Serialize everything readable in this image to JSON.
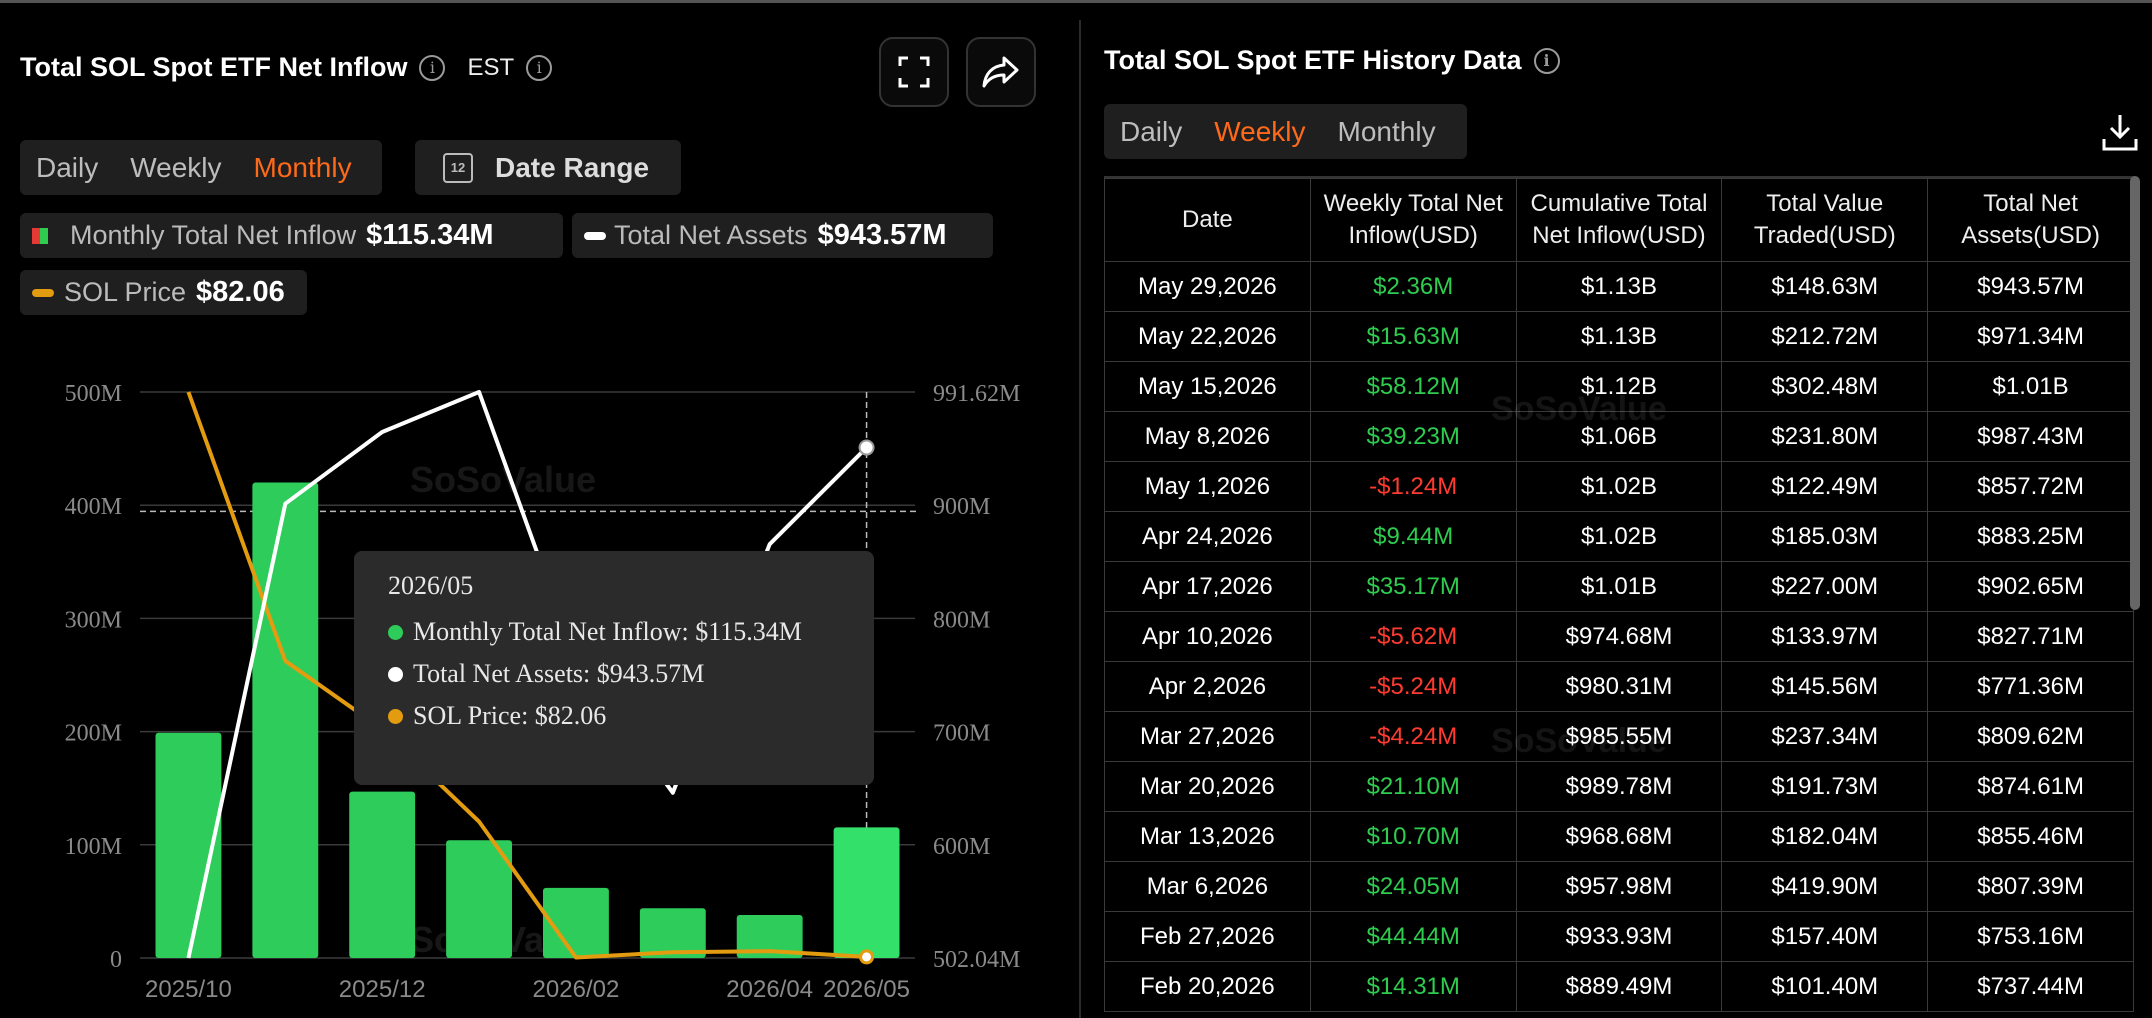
{
  "left": {
    "title": "Total SOL Spot ETF Net Inflow",
    "timezone": "EST",
    "period_tabs": [
      "Daily",
      "Weekly",
      "Monthly"
    ],
    "active_period": "Monthly",
    "date_range_label": "Date Range",
    "date_range_icon_text": "12",
    "legend": {
      "inflow_label": "Monthly Total Net Inflow",
      "inflow_value": "$115.34M",
      "assets_label": "Total Net Assets",
      "assets_value": "$943.57M",
      "price_label": "SOL Price",
      "price_value": "$82.06"
    },
    "tooltip": {
      "date": "2026/05",
      "inflow": "Monthly Total Net Inflow: $115.34M",
      "assets": "Total Net Assets: $943.57M",
      "price": "SOL Price: $82.06"
    },
    "watermark": "SoSoValue"
  },
  "chart_data": {
    "type": "bar",
    "categories": [
      "2025/10",
      "2025/11",
      "2025/12",
      "2026/01",
      "2026/02",
      "2026/03",
      "2026/04",
      "2026/05"
    ],
    "x_tick_labels": [
      "2025/10",
      "2025/12",
      "2026/02",
      "2026/04",
      "2026/05"
    ],
    "left_axis_ticks": [
      "500M",
      "400M",
      "300M",
      "200M",
      "100M",
      "0"
    ],
    "right_axis_ticks": [
      "991.62M",
      "900M",
      "800M",
      "700M",
      "600M",
      "502.04M"
    ],
    "ylim_left": [
      0,
      500
    ],
    "ylim_right": [
      502.04,
      991.62
    ],
    "series": [
      {
        "name": "Monthly Total Net Inflow",
        "type": "bar",
        "axis": "left",
        "color": "#2ecc5a",
        "values": [
          199,
          420,
          147,
          104,
          62,
          44,
          38,
          115.34
        ]
      },
      {
        "name": "Total Net Assets",
        "type": "line",
        "axis": "right",
        "color": "#ffffff",
        "values": [
          502.04,
          895,
          957,
          991.62,
          760,
          645,
          860,
          943.57
        ]
      },
      {
        "name": "SOL Price",
        "type": "line",
        "axis": "right",
        "color": "#e39b10",
        "values": [
          991.62,
          759,
          700,
          620,
          502.5,
          507,
          508,
          503
        ]
      }
    ],
    "grid": true,
    "highlight_category": "2026/05"
  },
  "right": {
    "title": "Total SOL Spot ETF History Data",
    "period_tabs": [
      "Daily",
      "Weekly",
      "Monthly"
    ],
    "active_period": "Weekly",
    "columns": [
      "Date",
      "Weekly Total Net Inflow(USD)",
      "Cumulative Total Net Inflow(USD)",
      "Total Value Traded(USD)",
      "Total Net Assets(USD)"
    ],
    "rows": [
      [
        "May 29,2026",
        "$2.36M",
        "$1.13B",
        "$148.63M",
        "$943.57M"
      ],
      [
        "May 22,2026",
        "$15.63M",
        "$1.13B",
        "$212.72M",
        "$971.34M"
      ],
      [
        "May 15,2026",
        "$58.12M",
        "$1.12B",
        "$302.48M",
        "$1.01B"
      ],
      [
        "May 8,2026",
        "$39.23M",
        "$1.06B",
        "$231.80M",
        "$987.43M"
      ],
      [
        "May 1,2026",
        "-$1.24M",
        "$1.02B",
        "$122.49M",
        "$857.72M"
      ],
      [
        "Apr 24,2026",
        "$9.44M",
        "$1.02B",
        "$185.03M",
        "$883.25M"
      ],
      [
        "Apr 17,2026",
        "$35.17M",
        "$1.01B",
        "$227.00M",
        "$902.65M"
      ],
      [
        "Apr 10,2026",
        "-$5.62M",
        "$974.68M",
        "$133.97M",
        "$827.71M"
      ],
      [
        "Apr 2,2026",
        "-$5.24M",
        "$980.31M",
        "$145.56M",
        "$771.36M"
      ],
      [
        "Mar 27,2026",
        "-$4.24M",
        "$985.55M",
        "$237.34M",
        "$809.62M"
      ],
      [
        "Mar 20,2026",
        "$21.10M",
        "$989.78M",
        "$191.73M",
        "$874.61M"
      ],
      [
        "Mar 13,2026",
        "$10.70M",
        "$968.68M",
        "$182.04M",
        "$855.46M"
      ],
      [
        "Mar 6,2026",
        "$24.05M",
        "$957.98M",
        "$419.90M",
        "$807.39M"
      ],
      [
        "Feb 27,2026",
        "$44.44M",
        "$933.93M",
        "$157.40M",
        "$753.16M"
      ],
      [
        "Feb 20,2026",
        "$14.31M",
        "$889.49M",
        "$101.40M",
        "$737.44M"
      ]
    ]
  }
}
